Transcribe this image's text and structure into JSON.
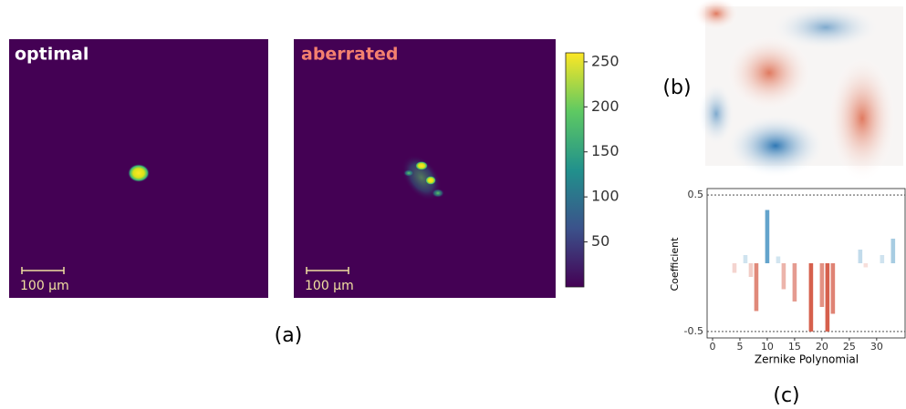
{
  "panel_labels": [
    "(a)",
    "(b)",
    "(c)"
  ],
  "chart_data": [
    {
      "type": "image",
      "title": "optimal",
      "title_color": "#ffffff",
      "scale_bar_label": "100 μm"
    },
    {
      "type": "image",
      "title": "aberrated",
      "title_color": "#f4806f",
      "scale_bar_label": "100 μm"
    },
    {
      "type": "colorbar",
      "ylim": [
        0,
        260
      ],
      "yticks": [
        50,
        100,
        150,
        200,
        250
      ]
    },
    {
      "type": "bar",
      "xlabel": "Zernike Polynomial",
      "ylabel": "Coefficient",
      "x": [
        0,
        1,
        2,
        3,
        4,
        5,
        6,
        7,
        8,
        9,
        10,
        11,
        12,
        13,
        14,
        15,
        16,
        17,
        18,
        19,
        20,
        21,
        22,
        23,
        24,
        25,
        26,
        27,
        28,
        29,
        30,
        31,
        32,
        33
      ],
      "values": [
        0,
        0,
        0,
        0,
        -0.07,
        0,
        0.06,
        -0.1,
        -0.35,
        0,
        0.39,
        0,
        0.05,
        -0.19,
        0,
        -0.28,
        0,
        0,
        -0.5,
        0,
        -0.32,
        -0.5,
        -0.37,
        0,
        0,
        0,
        0,
        0.1,
        -0.03,
        0,
        0,
        0.06,
        0,
        0.18
      ],
      "xlim": [
        -1,
        35.2
      ],
      "ylim": [
        -0.547,
        0.547
      ],
      "xticks": [
        0,
        5,
        10,
        15,
        20,
        25,
        30
      ],
      "yticks": [
        0.5,
        -0.5
      ],
      "grid": "dashed",
      "positive_color": "#3f8fc0",
      "negative_color": "#d6604d",
      "color_limits": [
        -0.5,
        0.5
      ]
    }
  ]
}
